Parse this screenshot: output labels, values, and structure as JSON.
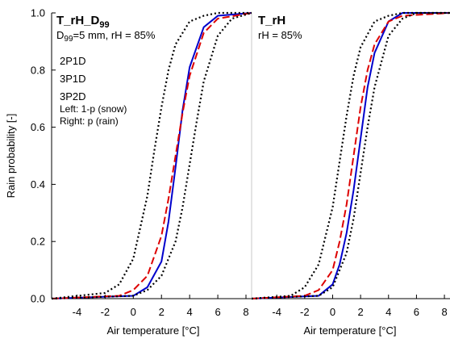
{
  "chart_data": [
    {
      "type": "line",
      "panel": "left",
      "title_main": "T_rH_D",
      "title_sub": "99",
      "param_line": {
        "d": "D",
        "d_sub": "99",
        "rest": "=5 mm, rH = 85%"
      },
      "legend_2p1d": "2P1D",
      "legend_3p1d": "3P1D",
      "legend_3p2d": "3P2D",
      "note_left": "Left: 1-p (snow)",
      "note_right": "Right: p (rain)",
      "xlabel": "Air temperature [°C]",
      "ylabel": "Rain probability [-]",
      "xlim": [
        -5.8,
        8.4
      ],
      "ylim": [
        0,
        1
      ],
      "xticks": [
        "-4",
        "-2",
        "0",
        "2",
        "4",
        "6",
        "8"
      ],
      "yticks": [
        "0.0",
        "0.2",
        "0.4",
        "0.6",
        "0.8",
        "1.0"
      ],
      "series": [
        {
          "name": "2P1D",
          "color": "#0000cc",
          "style": "solid",
          "x": [
            -5.8,
            0,
            1,
            2,
            2.5,
            3,
            3.5,
            4,
            5,
            6,
            8.4
          ],
          "y": [
            0.0,
            0.01,
            0.04,
            0.13,
            0.27,
            0.46,
            0.66,
            0.81,
            0.95,
            0.99,
            1.0
          ]
        },
        {
          "name": "3P1D",
          "color": "#dd0000",
          "style": "dashed",
          "x": [
            -5.8,
            -1,
            0,
            1,
            2,
            2.5,
            3,
            3.5,
            4,
            5,
            6,
            8.4
          ],
          "y": [
            0.0,
            0.01,
            0.03,
            0.08,
            0.22,
            0.35,
            0.5,
            0.65,
            0.78,
            0.93,
            0.98,
            1.0
          ]
        },
        {
          "name": "3P2D 1-p (snow)",
          "color": "#000000",
          "style": "dotted",
          "x": [
            -5.8,
            -2,
            -1,
            0,
            1,
            1.5,
            2,
            2.5,
            3,
            4,
            5,
            6,
            8.4
          ],
          "y": [
            0.0,
            0.02,
            0.05,
            0.14,
            0.36,
            0.52,
            0.67,
            0.8,
            0.89,
            0.97,
            0.99,
            1.0,
            1.0
          ]
        },
        {
          "name": "3P2D p (rain)",
          "color": "#000000",
          "style": "dotted",
          "x": [
            -5.8,
            0,
            1,
            2,
            3,
            3.5,
            4,
            4.5,
            5,
            6,
            7,
            8.4
          ],
          "y": [
            0.0,
            0.01,
            0.03,
            0.08,
            0.2,
            0.32,
            0.47,
            0.62,
            0.76,
            0.92,
            0.98,
            1.0
          ]
        }
      ]
    },
    {
      "type": "line",
      "panel": "right",
      "title_main": "T_rH",
      "param_line": {
        "rest": "rH = 85%"
      },
      "xlabel": "Air temperature [°C]",
      "xlim": [
        -5.8,
        8.4
      ],
      "ylim": [
        0,
        1
      ],
      "xticks": [
        "-4",
        "-2",
        "0",
        "2",
        "4",
        "6",
        "8"
      ],
      "series": [
        {
          "name": "2P1D",
          "color": "#0000cc",
          "style": "solid",
          "x": [
            -5.8,
            -1,
            0,
            0.5,
            1,
            1.5,
            2,
            2.5,
            3,
            4,
            5,
            8.4
          ],
          "y": [
            0.0,
            0.01,
            0.05,
            0.12,
            0.23,
            0.38,
            0.56,
            0.74,
            0.86,
            0.97,
            1.0,
            1.0
          ]
        },
        {
          "name": "3P1D",
          "color": "#dd0000",
          "style": "dashed",
          "x": [
            -5.8,
            -2,
            -1,
            0,
            0.5,
            1,
            1.5,
            2,
            2.5,
            3,
            4,
            5,
            8.4
          ],
          "y": [
            0.0,
            0.01,
            0.03,
            0.1,
            0.2,
            0.33,
            0.5,
            0.67,
            0.8,
            0.89,
            0.97,
            0.99,
            1.0
          ]
        },
        {
          "name": "3P2D 1-p (snow)",
          "color": "#000000",
          "style": "dotted",
          "x": [
            -5.8,
            -3,
            -2,
            -1,
            0,
            0.5,
            1,
            1.5,
            2,
            3,
            4,
            5,
            8.4
          ],
          "y": [
            0.0,
            0.01,
            0.04,
            0.12,
            0.32,
            0.48,
            0.64,
            0.78,
            0.88,
            0.97,
            0.99,
            1.0,
            1.0
          ]
        },
        {
          "name": "3P2D p (rain)",
          "color": "#000000",
          "style": "dotted",
          "x": [
            -5.8,
            -1,
            0,
            1,
            1.5,
            2,
            2.5,
            3,
            4,
            5,
            6,
            8.4
          ],
          "y": [
            0.0,
            0.01,
            0.04,
            0.16,
            0.28,
            0.44,
            0.6,
            0.74,
            0.92,
            0.98,
            1.0,
            1.0
          ]
        }
      ]
    }
  ]
}
